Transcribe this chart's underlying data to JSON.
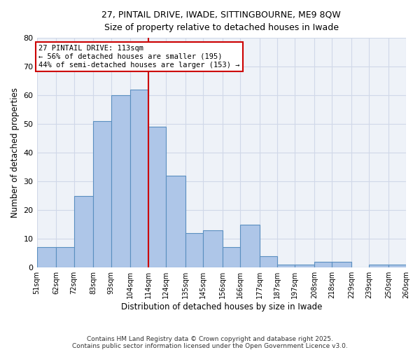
{
  "title1": "27, PINTAIL DRIVE, IWADE, SITTINGBOURNE, ME9 8QW",
  "title2": "Size of property relative to detached houses in Iwade",
  "xlabel": "Distribution of detached houses by size in Iwade",
  "ylabel": "Number of detached properties",
  "bin_edges": [
    51,
    62,
    72,
    83,
    93,
    104,
    114,
    124,
    135,
    145,
    156,
    166,
    177,
    187,
    197,
    208,
    218,
    229,
    239,
    250,
    260
  ],
  "bar_heights": [
    7,
    7,
    25,
    51,
    60,
    62,
    49,
    32,
    12,
    13,
    7,
    15,
    4,
    1,
    1,
    2,
    2,
    0,
    1,
    1
  ],
  "bar_color": "#aec6e8",
  "bar_edge_color": "#5a8fc0",
  "vline_x": 114,
  "vline_color": "#cc0000",
  "ylim": [
    0,
    80
  ],
  "yticks": [
    0,
    10,
    20,
    30,
    40,
    50,
    60,
    70,
    80
  ],
  "annotation_title": "27 PINTAIL DRIVE: 113sqm",
  "annotation_line1": "← 56% of detached houses are smaller (195)",
  "annotation_line2": "44% of semi-detached houses are larger (153) →",
  "annotation_box_color": "#ffffff",
  "annotation_border_color": "#cc0000",
  "grid_color": "#d0d8e8",
  "bg_color": "#eef2f8",
  "footer1": "Contains HM Land Registry data © Crown copyright and database right 2025.",
  "footer2": "Contains public sector information licensed under the Open Government Licence v3.0."
}
